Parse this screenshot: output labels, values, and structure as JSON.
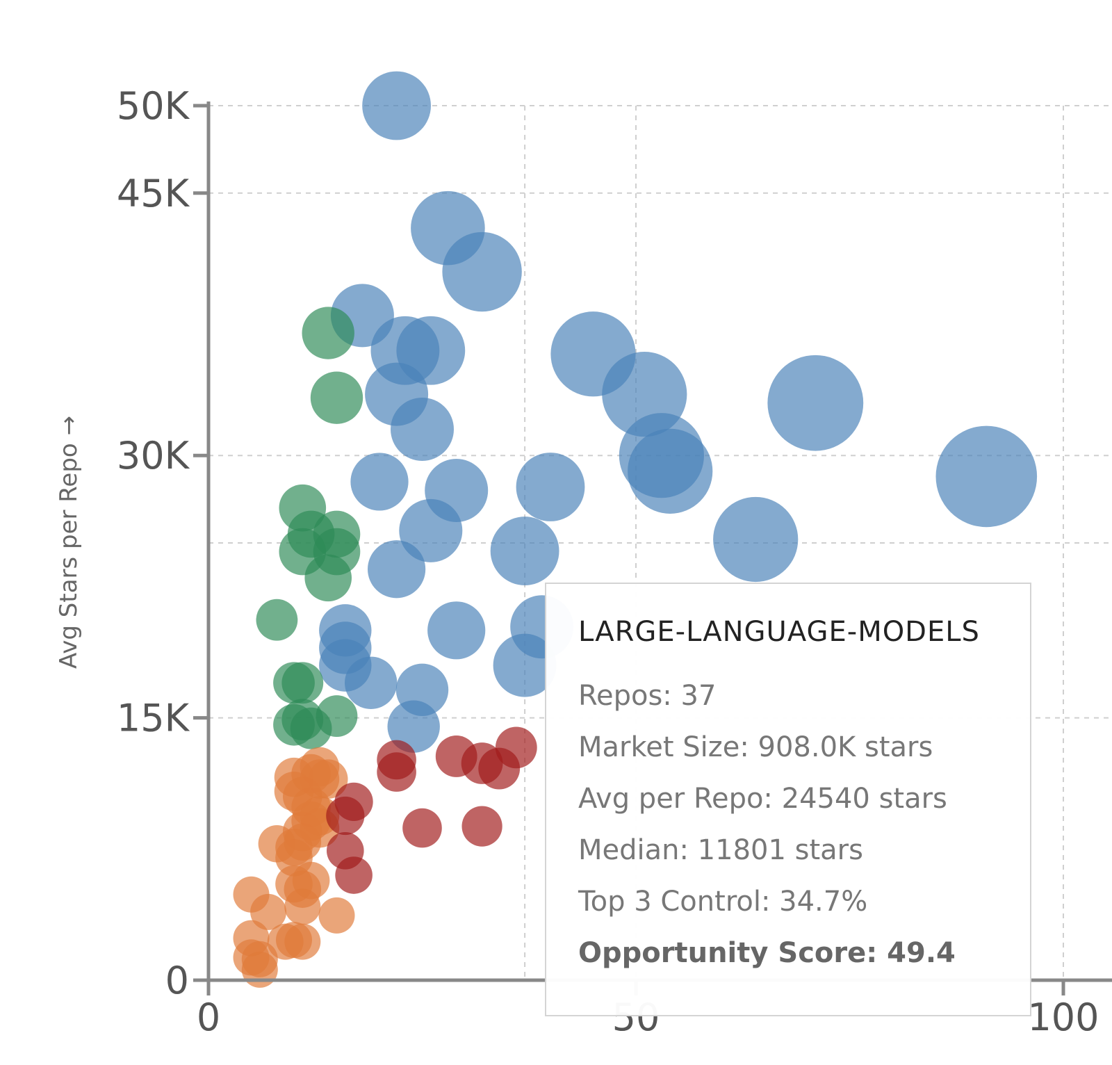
{
  "chart_data": {
    "type": "scatter",
    "ylabel": "Avg Stars per Repo →",
    "xlim": [
      0,
      100
    ],
    "ylim": [
      0,
      50000
    ],
    "x_ticks": [
      0,
      50,
      100
    ],
    "x_tick_labels": [
      "0",
      "50",
      "100"
    ],
    "y_ticks": [
      0,
      15000,
      30000,
      45000,
      50000
    ],
    "y_tick_labels": [
      "0",
      "15K",
      "30K",
      "45K",
      "50K"
    ],
    "grid": true,
    "colors": {
      "blue": "#4a81b8",
      "green": "#2e8b57",
      "orange": "#e07b39",
      "red": "#a01a1a"
    },
    "series": [
      {
        "color_key": "blue",
        "points": [
          {
            "x": 22,
            "y": 50000,
            "size": 7
          },
          {
            "x": 28,
            "y": 43000,
            "size": 8
          },
          {
            "x": 32,
            "y": 40500,
            "size": 9
          },
          {
            "x": 18,
            "y": 38000,
            "size": 6
          },
          {
            "x": 23,
            "y": 36000,
            "size": 7
          },
          {
            "x": 26,
            "y": 36000,
            "size": 7
          },
          {
            "x": 22,
            "y": 33500,
            "size": 6
          },
          {
            "x": 25,
            "y": 31500,
            "size": 6
          },
          {
            "x": 45,
            "y": 35800,
            "size": 10
          },
          {
            "x": 51,
            "y": 33500,
            "size": 10
          },
          {
            "x": 71,
            "y": 33000,
            "size": 12
          },
          {
            "x": 53,
            "y": 30000,
            "size": 10
          },
          {
            "x": 54,
            "y": 29100,
            "size": 10
          },
          {
            "x": 91,
            "y": 28800,
            "size": 13
          },
          {
            "x": 20,
            "y": 28500,
            "size": 5
          },
          {
            "x": 29,
            "y": 28000,
            "size": 6
          },
          {
            "x": 40,
            "y": 28200,
            "size": 7
          },
          {
            "x": 26,
            "y": 25700,
            "size": 6
          },
          {
            "x": 37,
            "y": 24540,
            "size": 7
          },
          {
            "x": 64,
            "y": 25200,
            "size": 10
          },
          {
            "x": 22,
            "y": 23500,
            "size": 5
          },
          {
            "x": 16,
            "y": 20000,
            "size": 4
          },
          {
            "x": 16,
            "y": 19000,
            "size": 4
          },
          {
            "x": 16,
            "y": 18000,
            "size": 4
          },
          {
            "x": 29,
            "y": 20000,
            "size": 5
          },
          {
            "x": 39,
            "y": 20200,
            "size": 6
          },
          {
            "x": 37,
            "y": 18000,
            "size": 6
          },
          {
            "x": 19,
            "y": 17000,
            "size": 4
          },
          {
            "x": 25,
            "y": 16600,
            "size": 4
          },
          {
            "x": 24,
            "y": 14500,
            "size": 4
          }
        ]
      },
      {
        "color_key": "green",
        "points": [
          {
            "x": 14,
            "y": 37000,
            "size": 4
          },
          {
            "x": 15,
            "y": 33300,
            "size": 4
          },
          {
            "x": 11,
            "y": 27000,
            "size": 3
          },
          {
            "x": 12,
            "y": 25500,
            "size": 3
          },
          {
            "x": 15,
            "y": 25500,
            "size": 3
          },
          {
            "x": 11,
            "y": 24500,
            "size": 3
          },
          {
            "x": 15,
            "y": 24500,
            "size": 3
          },
          {
            "x": 14,
            "y": 23000,
            "size": 3
          },
          {
            "x": 8,
            "y": 20600,
            "size": 2
          },
          {
            "x": 10,
            "y": 17000,
            "size": 2
          },
          {
            "x": 11,
            "y": 17000,
            "size": 2
          },
          {
            "x": 10,
            "y": 14600,
            "size": 2
          },
          {
            "x": 11,
            "y": 14900,
            "size": 2
          },
          {
            "x": 12,
            "y": 14400,
            "size": 2
          },
          {
            "x": 15,
            "y": 15100,
            "size": 2
          }
        ]
      },
      {
        "color_key": "orange",
        "points": [
          {
            "x": 13,
            "y": 12200,
            "size": 1.6
          },
          {
            "x": 10,
            "y": 11600,
            "size": 1.6
          },
          {
            "x": 12,
            "y": 11800,
            "size": 1.6
          },
          {
            "x": 13,
            "y": 11500,
            "size": 1.6
          },
          {
            "x": 14,
            "y": 11500,
            "size": 1.6
          },
          {
            "x": 10,
            "y": 10800,
            "size": 1.6
          },
          {
            "x": 11,
            "y": 10500,
            "size": 1.6
          },
          {
            "x": 12,
            "y": 9900,
            "size": 1.6
          },
          {
            "x": 13,
            "y": 9400,
            "size": 1.6
          },
          {
            "x": 12,
            "y": 9100,
            "size": 1.6
          },
          {
            "x": 11,
            "y": 8500,
            "size": 1.6
          },
          {
            "x": 13,
            "y": 8700,
            "size": 1.6
          },
          {
            "x": 8,
            "y": 7800,
            "size": 1.2
          },
          {
            "x": 10,
            "y": 7600,
            "size": 1.2
          },
          {
            "x": 11,
            "y": 7900,
            "size": 1.2
          },
          {
            "x": 10,
            "y": 7000,
            "size": 1.2
          },
          {
            "x": 10,
            "y": 5500,
            "size": 1.2
          },
          {
            "x": 11,
            "y": 5200,
            "size": 1.2
          },
          {
            "x": 12,
            "y": 5700,
            "size": 1.2
          },
          {
            "x": 5,
            "y": 4900,
            "size": 1
          },
          {
            "x": 7,
            "y": 3900,
            "size": 1
          },
          {
            "x": 11,
            "y": 4200,
            "size": 1
          },
          {
            "x": 15,
            "y": 3700,
            "size": 1
          },
          {
            "x": 5,
            "y": 2400,
            "size": 1
          },
          {
            "x": 9,
            "y": 2200,
            "size": 1
          },
          {
            "x": 10,
            "y": 2300,
            "size": 1
          },
          {
            "x": 11,
            "y": 2200,
            "size": 1
          },
          {
            "x": 5,
            "y": 1300,
            "size": 1
          },
          {
            "x": 6,
            "y": 1200,
            "size": 1
          },
          {
            "x": 6,
            "y": 600,
            "size": 1
          }
        ]
      },
      {
        "color_key": "red",
        "points": [
          {
            "x": 22,
            "y": 12600,
            "size": 1.6
          },
          {
            "x": 22,
            "y": 11900,
            "size": 1.6
          },
          {
            "x": 29,
            "y": 12800,
            "size": 2
          },
          {
            "x": 32,
            "y": 12400,
            "size": 2
          },
          {
            "x": 34,
            "y": 12100,
            "size": 2
          },
          {
            "x": 36,
            "y": 13300,
            "size": 2
          },
          {
            "x": 17,
            "y": 10200,
            "size": 1.4
          },
          {
            "x": 16,
            "y": 9400,
            "size": 1.4
          },
          {
            "x": 25,
            "y": 8700,
            "size": 1.6
          },
          {
            "x": 32,
            "y": 8800,
            "size": 1.8
          },
          {
            "x": 16,
            "y": 7400,
            "size": 1.2
          },
          {
            "x": 17,
            "y": 6000,
            "size": 1.2
          }
        ]
      }
    ]
  },
  "tooltip": {
    "title": "LARGE-LANGUAGE-MODELS",
    "repos": "Repos: 37",
    "market_size": "Market Size: 908.0K stars",
    "avg_per_repo": "Avg per Repo: 24540 stars",
    "median": "Median: 11801 stars",
    "top3": "Top 3 Control: 34.7%",
    "score": "Opportunity Score: 49.4"
  }
}
